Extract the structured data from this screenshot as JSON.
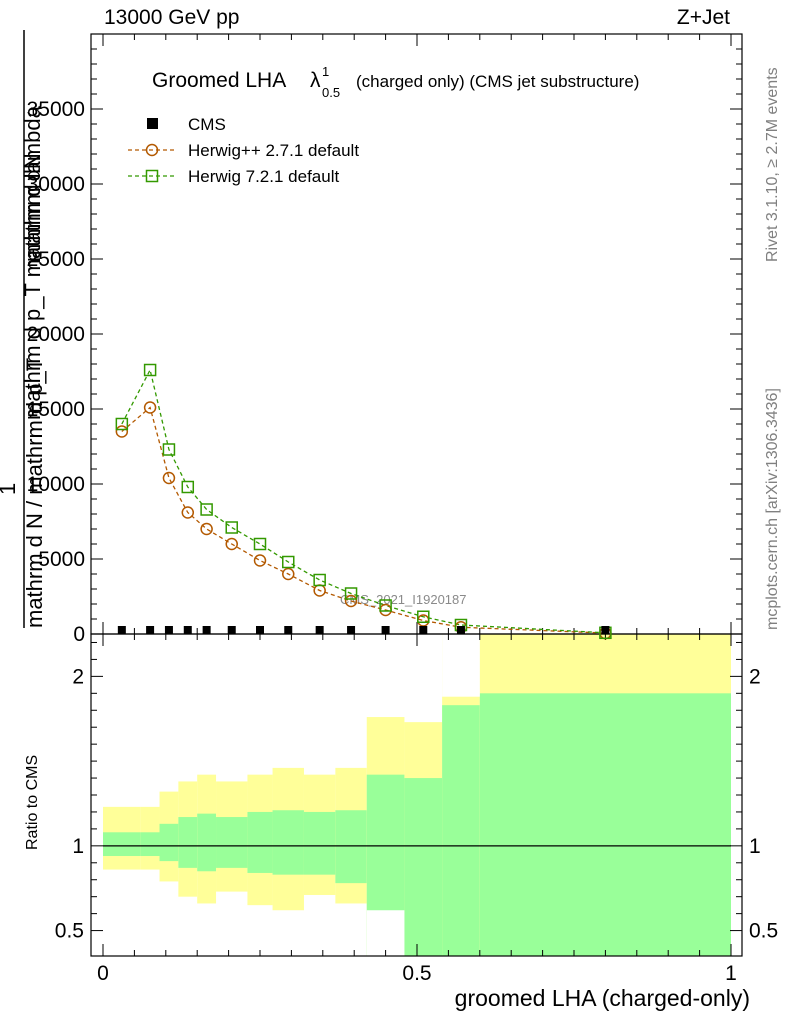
{
  "header": {
    "left": "13000 GeV pp",
    "right": "Z+Jet"
  },
  "side": {
    "rivet": "Rivet 3.1.10, ≥ 2.7M events",
    "mcplots": "mcplots.cern.ch [arXiv:1306.3436]"
  },
  "title": {
    "main": "Groomed LHA",
    "lambda": "λ",
    "sup": "1",
    "sub": "0.5",
    "rest": "(charged only) (CMS jet substructure)"
  },
  "watermark": "CMS_2021_I1920187",
  "legend": {
    "cms": "CMS",
    "herwigpp": "Herwig++ 2.7.1 default",
    "herwig7": "Herwig 7.2.1 default"
  },
  "colors": {
    "herwigpp": "#b35900",
    "herwig7": "#339900",
    "band_outer": "#ffff99",
    "band_inner": "#99ff99"
  },
  "chart_data": [
    {
      "type": "line",
      "title": "Groomed LHA λ^1_0.5 (charged only) (CMS jet substructure)",
      "ylabel_lines": [
        "mathrm dN",
        "mathrm d p_T mathrm d lambda",
        "1",
        "mathrm d N / mathrm d p_T"
      ],
      "ylim": [
        0,
        40000
      ],
      "xlim": [
        0,
        1
      ],
      "yticks": [
        0,
        5000,
        10000,
        15000,
        20000,
        25000,
        30000,
        35000
      ],
      "ytick_labels": [
        "0",
        "5000",
        "10000",
        "15000",
        "20000",
        "25000",
        "30000",
        "35000"
      ],
      "series": [
        {
          "name": "CMS",
          "x": [
            0.03,
            0.075,
            0.105,
            0.135,
            0.165,
            0.205,
            0.25,
            0.295,
            0.345,
            0.395,
            0.45,
            0.51,
            0.57,
            0.8
          ],
          "values": [
            5,
            5,
            5,
            5,
            5,
            5,
            5,
            5,
            5,
            5,
            5,
            5,
            5,
            5
          ]
        },
        {
          "name": "Herwig++ 2.7.1 default",
          "x": [
            0.03,
            0.075,
            0.105,
            0.135,
            0.165,
            0.205,
            0.25,
            0.295,
            0.345,
            0.395,
            0.45,
            0.51,
            0.57,
            0.8
          ],
          "values": [
            13500,
            15100,
            10400,
            8100,
            7000,
            6000,
            4900,
            4000,
            2900,
            2200,
            1600,
            900,
            450,
            60
          ]
        },
        {
          "name": "Herwig 7.2.1 default",
          "x": [
            0.03,
            0.075,
            0.105,
            0.135,
            0.165,
            0.205,
            0.25,
            0.295,
            0.345,
            0.395,
            0.45,
            0.51,
            0.57,
            0.8
          ],
          "values": [
            14000,
            17600,
            12300,
            9800,
            8300,
            7100,
            6000,
            4800,
            3600,
            2700,
            1900,
            1150,
            600,
            80
          ]
        }
      ]
    },
    {
      "type": "area",
      "ylabel": "Ratio to CMS",
      "xlabel": "groomed LHA (charged-only)",
      "xlim": [
        0,
        1
      ],
      "ylim": [
        0.35,
        2.25
      ],
      "xticks": [
        0,
        0.5,
        1
      ],
      "xtick_labels": [
        "0",
        "0.5",
        "1"
      ],
      "yticks": [
        0.5,
        1,
        2
      ],
      "ytick_labels": [
        "0.5",
        "1",
        "2"
      ],
      "bin_edges": [
        0,
        0.06,
        0.09,
        0.12,
        0.15,
        0.18,
        0.23,
        0.27,
        0.32,
        0.37,
        0.42,
        0.48,
        0.54,
        0.6,
        1.0
      ],
      "band_outer": {
        "low": [
          0.86,
          0.86,
          0.79,
          0.7,
          0.66,
          0.73,
          0.65,
          0.62,
          0.71,
          0.66,
          0.35,
          0.35,
          0.35,
          0.35
        ],
        "high": [
          1.23,
          1.23,
          1.32,
          1.38,
          1.42,
          1.38,
          1.42,
          1.46,
          1.42,
          1.46,
          1.76,
          1.73,
          2.8,
          2.3
        ]
      },
      "band_inner": {
        "low": [
          0.94,
          0.94,
          0.91,
          0.87,
          0.85,
          0.87,
          0.84,
          0.83,
          0.83,
          0.78,
          0.35,
          0.35,
          0.35,
          0.35
        ],
        "high": [
          1.08,
          1.08,
          1.13,
          1.17,
          1.19,
          1.17,
          1.2,
          1.21,
          1.2,
          1.21,
          1.42,
          1.4,
          1.83,
          1.9
        ]
      },
      "gaps": [
        {
          "x": [
            0.42,
            0.48
          ],
          "low": 0.35,
          "high": 0.62
        },
        {
          "x": [
            0.54,
            0.6
          ],
          "low": 1.88,
          "high": 2.25
        }
      ]
    }
  ]
}
